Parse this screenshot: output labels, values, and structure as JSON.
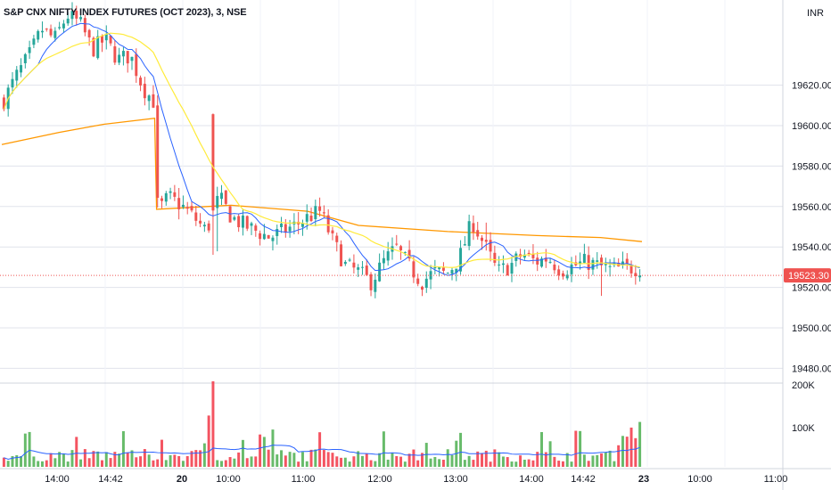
{
  "header": {
    "title": "S&P CNX NIFTY INDEX FUTURES (OCT 2023), 3, NSE",
    "currency": "INR"
  },
  "colors": {
    "up": "#26a69a",
    "down": "#ef5350",
    "vol_up": "#4caf50",
    "vol_down": "#f23645",
    "ma_fast": "#2962ff",
    "ma_slow": "#ffeb3b",
    "vwap": "#ff9800",
    "grid": "#e0e3eb",
    "text": "#131722",
    "last_price_bg": "#ef5350"
  },
  "chart_data": {
    "type": "candlestick",
    "title": "S&P CNX NIFTY INDEX FUTURES (OCT 2023), 3, NSE",
    "timeframe_minutes": 3,
    "y_axis": {
      "ticks": [
        "19620.00",
        "19600.00",
        "19580.00",
        "19560.00",
        "19540.00",
        "19520.00",
        "19500.00",
        "19480.00"
      ],
      "values": [
        19620,
        19600,
        19580,
        19560,
        19540,
        19520,
        19500,
        19480
      ]
    },
    "volume_axis": {
      "ticks": [
        "200K",
        "100K"
      ],
      "values": [
        200000,
        100000
      ]
    },
    "x_axis": {
      "ticks": [
        "14:00",
        "14:42",
        "20",
        "10:00",
        "11:00",
        "12:00",
        "13:00",
        "14:00",
        "14:42",
        "23",
        "10:00",
        "11:00"
      ]
    },
    "last_price": {
      "label": "19523.30",
      "value": 19523.3
    },
    "series": [
      {
        "name": "Price",
        "kind": "candles",
        "close_path": [
          [
            0,
            19610
          ],
          [
            2,
            19622
          ],
          [
            4,
            19632
          ],
          [
            6,
            19645
          ],
          [
            8,
            19640
          ],
          [
            10,
            19652
          ],
          [
            12,
            19648
          ],
          [
            14,
            19635
          ],
          [
            16,
            19640
          ],
          [
            18,
            19630
          ],
          [
            20,
            19632
          ],
          [
            22,
            19616
          ],
          [
            24,
            19608
          ],
          [
            24.3,
            19555
          ],
          [
            26,
            19562
          ],
          [
            28,
            19558
          ],
          [
            30,
            19552
          ],
          [
            32,
            19545
          ],
          [
            34,
            19562
          ],
          [
            36,
            19552
          ],
          [
            38,
            19548
          ],
          [
            40,
            19545
          ],
          [
            42,
            19542
          ],
          [
            44,
            19545
          ],
          [
            46,
            19548
          ],
          [
            48,
            19552
          ],
          [
            50,
            19555
          ],
          [
            52,
            19540
          ],
          [
            54,
            19528
          ],
          [
            56,
            19525
          ],
          [
            58,
            19520
          ],
          [
            60,
            19530
          ],
          [
            62,
            19537
          ],
          [
            64,
            19528
          ],
          [
            66,
            19520
          ],
          [
            68,
            19525
          ],
          [
            70,
            19524
          ],
          [
            72,
            19532
          ],
          [
            74,
            19550
          ],
          [
            76,
            19538
          ],
          [
            78,
            19525
          ],
          [
            80,
            19528
          ],
          [
            82,
            19534
          ],
          [
            84,
            19530
          ],
          [
            86,
            19532
          ],
          [
            88,
            19526
          ],
          [
            90,
            19528
          ],
          [
            92,
            19530
          ],
          [
            94,
            19528
          ],
          [
            96,
            19526
          ],
          [
            98,
            19527
          ],
          [
            100,
            19527
          ],
          [
            100.5,
            19523.3
          ]
        ]
      },
      {
        "name": "MA fast",
        "kind": "line"
      },
      {
        "name": "MA slow",
        "kind": "line"
      },
      {
        "name": "VWAP",
        "kind": "line",
        "points": [
          [
            0,
            19588
          ],
          [
            9,
            19594
          ],
          [
            16,
            19598
          ],
          [
            24,
            19601
          ],
          [
            24.3,
            19556
          ],
          [
            36,
            19558
          ],
          [
            48,
            19555
          ],
          [
            56,
            19548
          ],
          [
            70,
            19545
          ],
          [
            84,
            19543
          ],
          [
            94,
            19542
          ],
          [
            100.5,
            19540
          ]
        ]
      },
      {
        "name": "Volume",
        "kind": "bars"
      },
      {
        "name": "Volume MA",
        "kind": "line"
      }
    ]
  }
}
